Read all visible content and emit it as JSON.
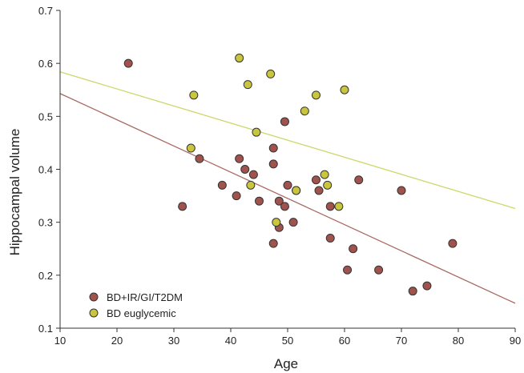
{
  "chart_data": {
    "type": "scatter",
    "title": "",
    "xlabel": "Age",
    "ylabel": "Hippocampal volume",
    "xlim": [
      10,
      90
    ],
    "ylim": [
      0.1,
      0.7
    ],
    "xticks": [
      "10",
      "20",
      "30",
      "40",
      "50",
      "60",
      "70",
      "80",
      "90"
    ],
    "yticks": [
      "0.1",
      "0.2",
      "0.3",
      "0.4",
      "0.5",
      "0.6",
      "0.7"
    ],
    "grid": false,
    "legend_position": "bottom-left",
    "series": [
      {
        "name": "BD+IR/GI/T2DM",
        "color": "#a0524d",
        "line_color": "#a86a62",
        "trendline": [
          [
            10,
            0.543
          ],
          [
            90,
            0.147
          ]
        ],
        "points": [
          [
            22,
            0.6
          ],
          [
            31.5,
            0.33
          ],
          [
            34.5,
            0.42
          ],
          [
            38.5,
            0.37
          ],
          [
            41,
            0.35
          ],
          [
            41.5,
            0.42
          ],
          [
            42.5,
            0.4
          ],
          [
            44,
            0.39
          ],
          [
            45,
            0.34
          ],
          [
            47.5,
            0.26
          ],
          [
            47.5,
            0.41
          ],
          [
            47.5,
            0.44
          ],
          [
            48.5,
            0.29
          ],
          [
            48.5,
            0.34
          ],
          [
            49.5,
            0.33
          ],
          [
            49.5,
            0.49
          ],
          [
            50,
            0.37
          ],
          [
            51,
            0.3
          ],
          [
            51.5,
            0.36
          ],
          [
            55,
            0.38
          ],
          [
            55.5,
            0.36
          ],
          [
            57.5,
            0.27
          ],
          [
            57.5,
            0.33
          ],
          [
            60.5,
            0.21
          ],
          [
            61.5,
            0.25
          ],
          [
            62.5,
            0.38
          ],
          [
            66,
            0.21
          ],
          [
            70,
            0.36
          ],
          [
            72,
            0.17
          ],
          [
            74.5,
            0.18
          ],
          [
            79,
            0.26
          ]
        ]
      },
      {
        "name": "BD euglycemic",
        "color": "#c9c63e",
        "line_color": "#cdd76a",
        "trendline": [
          [
            10,
            0.584
          ],
          [
            90,
            0.326
          ]
        ],
        "points": [
          [
            33,
            0.44
          ],
          [
            33.5,
            0.54
          ],
          [
            41.5,
            0.61
          ],
          [
            43,
            0.56
          ],
          [
            43.5,
            0.37
          ],
          [
            44.5,
            0.47
          ],
          [
            47,
            0.58
          ],
          [
            48,
            0.3
          ],
          [
            51.5,
            0.36
          ],
          [
            53,
            0.51
          ],
          [
            55,
            0.54
          ],
          [
            56.5,
            0.39
          ],
          [
            57,
            0.37
          ],
          [
            59,
            0.33
          ],
          [
            60,
            0.55
          ]
        ]
      }
    ]
  }
}
